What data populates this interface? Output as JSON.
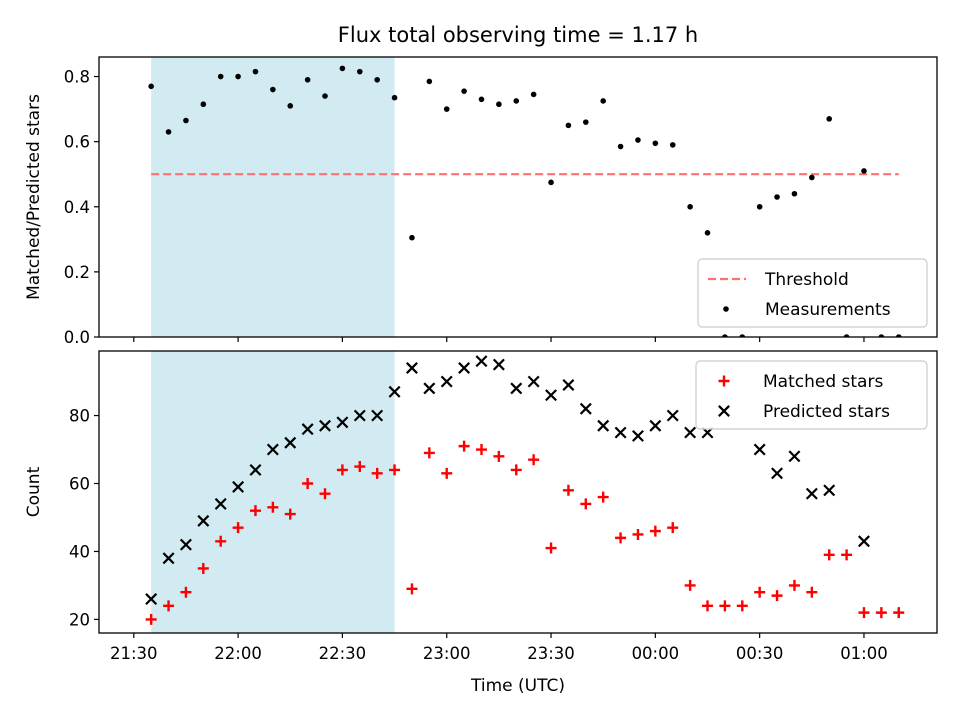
{
  "figure": {
    "title": "Flux total observing time = 1.17 h",
    "xlabel": "Time (UTC)"
  },
  "chart_data": [
    {
      "type": "scatter",
      "ylabel": "Matched/Predicted stars",
      "ylim": [
        0,
        0.86
      ],
      "yticks": [
        0.0,
        0.2,
        0.4,
        0.6,
        0.8
      ],
      "xlim": [
        "21:20",
        "01:21"
      ],
      "xticks": [
        "21:30",
        "22:00",
        "22:30",
        "23:00",
        "23:30",
        "00:00",
        "00:30",
        "01:00"
      ],
      "shaded_region": {
        "x": [
          "21:35",
          "22:45"
        ],
        "color": "#add8e6"
      },
      "legend": {
        "placement": "lower-right",
        "entries": [
          "Threshold",
          "Measurements"
        ]
      },
      "series": [
        {
          "name": "Threshold",
          "kind": "dashed-line",
          "color": "#ff7070",
          "x": [
            "21:35",
            "01:10"
          ],
          "y": [
            0.5,
            0.5
          ]
        },
        {
          "name": "Measurements",
          "kind": "dot",
          "color": "#000000",
          "x": [
            "21:35",
            "21:40",
            "21:45",
            "21:50",
            "21:55",
            "22:00",
            "22:05",
            "22:10",
            "22:15",
            "22:20",
            "22:25",
            "22:30",
            "22:35",
            "22:40",
            "22:45",
            "22:50",
            "22:55",
            "23:00",
            "23:05",
            "23:10",
            "23:15",
            "23:20",
            "23:25",
            "23:30",
            "23:35",
            "23:40",
            "23:45",
            "23:50",
            "23:55",
            "00:00",
            "00:05",
            "00:10",
            "00:15",
            "00:20",
            "00:25",
            "00:30",
            "00:35",
            "00:40",
            "00:45",
            "00:50",
            "00:55",
            "01:00",
            "01:05",
            "01:10"
          ],
          "y": [
            0.77,
            0.63,
            0.665,
            0.715,
            0.8,
            0.8,
            0.815,
            0.76,
            0.71,
            0.79,
            0.74,
            0.825,
            0.815,
            0.79,
            0.735,
            0.305,
            0.785,
            0.7,
            0.755,
            0.73,
            0.715,
            0.725,
            0.745,
            0.475,
            0.65,
            0.66,
            0.725,
            0.585,
            0.605,
            0.595,
            0.59,
            0.4,
            0.32,
            0.0,
            0.0,
            0.4,
            0.43,
            0.44,
            0.49,
            0.67,
            0.0,
            0.51,
            0.0,
            0.0
          ]
        }
      ]
    },
    {
      "type": "scatter",
      "ylabel": "Count",
      "ylim": [
        16,
        99
      ],
      "yticks": [
        20,
        40,
        60,
        80
      ],
      "xlim": [
        "21:20",
        "01:21"
      ],
      "xticks": [
        "21:30",
        "22:00",
        "22:30",
        "23:00",
        "23:30",
        "00:00",
        "00:30",
        "01:00"
      ],
      "shaded_region": {
        "x": [
          "21:35",
          "22:45"
        ],
        "color": "#add8e6"
      },
      "legend": {
        "placement": "top-right",
        "entries": [
          "Matched stars",
          "Predicted stars"
        ]
      },
      "series": [
        {
          "name": "Matched stars",
          "marker": "+",
          "color": "#ff0000",
          "x": [
            "21:35",
            "21:40",
            "21:45",
            "21:50",
            "21:55",
            "22:00",
            "22:05",
            "22:10",
            "22:15",
            "22:20",
            "22:25",
            "22:30",
            "22:35",
            "22:40",
            "22:45",
            "22:50",
            "22:55",
            "23:00",
            "23:05",
            "23:10",
            "23:15",
            "23:20",
            "23:25",
            "23:30",
            "23:35",
            "23:40",
            "23:45",
            "23:50",
            "23:55",
            "00:00",
            "00:05",
            "00:10",
            "00:15",
            "00:20",
            "00:25",
            "00:30",
            "00:35",
            "00:40",
            "00:45",
            "00:50",
            "00:55",
            "01:00",
            "01:05",
            "01:10"
          ],
          "y": [
            20,
            24,
            28,
            35,
            43,
            47,
            52,
            53,
            51,
            60,
            57,
            64,
            65,
            63,
            64,
            29,
            69,
            63,
            71,
            70,
            68,
            64,
            67,
            41,
            58,
            54,
            56,
            44,
            45,
            46,
            47,
            30,
            24,
            24,
            24,
            28,
            27,
            30,
            28,
            39,
            39,
            22,
            22,
            22
          ]
        },
        {
          "name": "Predicted stars",
          "marker": "x",
          "color": "#000000",
          "x": [
            "21:35",
            "21:40",
            "21:45",
            "21:50",
            "21:55",
            "22:00",
            "22:05",
            "22:10",
            "22:15",
            "22:20",
            "22:25",
            "22:30",
            "22:35",
            "22:40",
            "22:45",
            "22:50",
            "22:55",
            "23:00",
            "23:05",
            "23:10",
            "23:15",
            "23:20",
            "23:25",
            "23:30",
            "23:35",
            "23:40",
            "23:45",
            "23:50",
            "23:55",
            "00:00",
            "00:05",
            "00:10",
            "00:15",
            "00:30",
            "00:35",
            "00:40",
            "00:45",
            "00:50",
            "01:00"
          ],
          "y": [
            26,
            38,
            42,
            49,
            54,
            59,
            64,
            70,
            72,
            76,
            77,
            78,
            80,
            80,
            87,
            94,
            88,
            90,
            94,
            96,
            95,
            88,
            90,
            86,
            89,
            82,
            77,
            75,
            74,
            77,
            80,
            75,
            75,
            70,
            63,
            68,
            57,
            58,
            43
          ]
        }
      ]
    }
  ]
}
